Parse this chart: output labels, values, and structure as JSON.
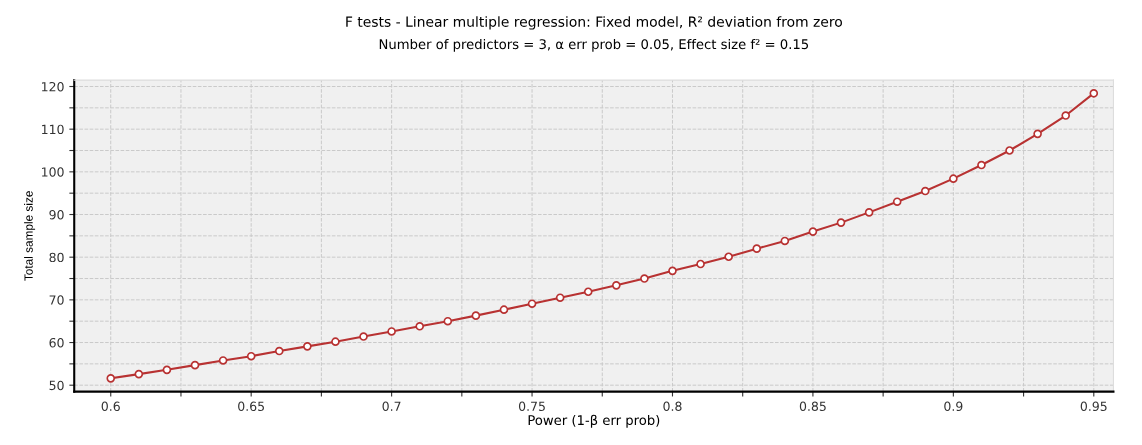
{
  "chart_data": {
    "type": "line",
    "title": "F tests - Linear multiple regression: Fixed model, R² deviation from zero",
    "subtitle": "Number of predictors = 3, α err prob = 0.05, Effect size f² = 0.15",
    "xlabel": "Power (1-β err prob)",
    "ylabel": "Total sample size",
    "x": [
      0.6,
      0.61,
      0.62,
      0.63,
      0.64,
      0.65,
      0.66,
      0.67,
      0.68,
      0.69,
      0.7,
      0.71,
      0.72,
      0.73,
      0.74,
      0.75,
      0.76,
      0.77,
      0.78,
      0.79,
      0.8,
      0.81,
      0.82,
      0.83,
      0.84,
      0.85,
      0.86,
      0.87,
      0.88,
      0.89,
      0.9,
      0.91,
      0.92,
      0.93,
      0.94,
      0.95
    ],
    "series": [
      {
        "color": "#b83232",
        "values": [
          51.6,
          52.6,
          53.6,
          54.7,
          55.8,
          56.8,
          58.0,
          59.1,
          60.2,
          61.4,
          62.6,
          63.8,
          65.0,
          66.3,
          67.7,
          69.1,
          70.5,
          71.9,
          73.4,
          75.0,
          76.8,
          78.4,
          80.1,
          82.0,
          83.8,
          86.0,
          88.1,
          90.5,
          93.0,
          95.5,
          98.4,
          101.6,
          105.0,
          108.9,
          113.2,
          118.4
        ]
      }
    ],
    "xlim": [
      0.587,
      0.957
    ],
    "ylim": [
      48.5,
      121.5
    ],
    "xticks": [
      0.6,
      {
        "value": 0.625,
        "label": null
      },
      0.65,
      {
        "value": 0.675,
        "label": null
      },
      0.7,
      {
        "value": 0.725,
        "label": null
      },
      0.75,
      {
        "value": 0.775,
        "label": null
      },
      0.8,
      {
        "value": 0.825,
        "label": null
      },
      0.85,
      {
        "value": 0.875,
        "label": null
      },
      0.9,
      {
        "value": 0.925,
        "label": null
      },
      0.95
    ],
    "yticks": [
      50,
      {
        "value": 55,
        "label": null
      },
      60,
      {
        "value": 65,
        "label": null
      },
      70,
      {
        "value": 75,
        "label": null
      },
      80,
      {
        "value": 85,
        "label": null
      },
      90,
      {
        "value": 95,
        "label": null
      },
      100,
      {
        "value": 105,
        "label": null
      },
      110,
      {
        "value": 115,
        "label": null
      },
      120
    ],
    "grid": true,
    "marker": "circle",
    "line_style": "solid"
  }
}
